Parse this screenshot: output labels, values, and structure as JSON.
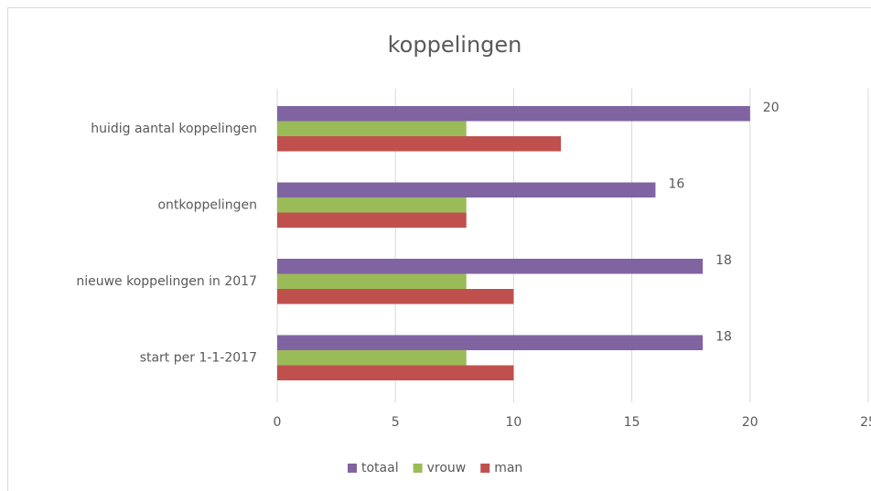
{
  "chart_data": {
    "type": "hbar",
    "title": "koppelingen",
    "categories": [
      "huidig aantal koppelingen",
      "ontkoppelingen",
      "nieuwe koppelingen in 2017",
      "start per 1-1-2017"
    ],
    "series": [
      {
        "name": "totaal",
        "color": "#8064a2",
        "values": [
          20,
          16,
          18,
          18
        ],
        "labels": true
      },
      {
        "name": "vrouw",
        "color": "#9bbb59",
        "values": [
          8,
          8,
          8,
          8
        ]
      },
      {
        "name": "man",
        "color": "#c0504d",
        "values": [
          12,
          8,
          10,
          10
        ]
      }
    ],
    "xlim": [
      0,
      25
    ],
    "xticks": [
      0,
      5,
      10,
      15,
      20,
      25
    ],
    "grid": true,
    "legend": "bottom"
  }
}
